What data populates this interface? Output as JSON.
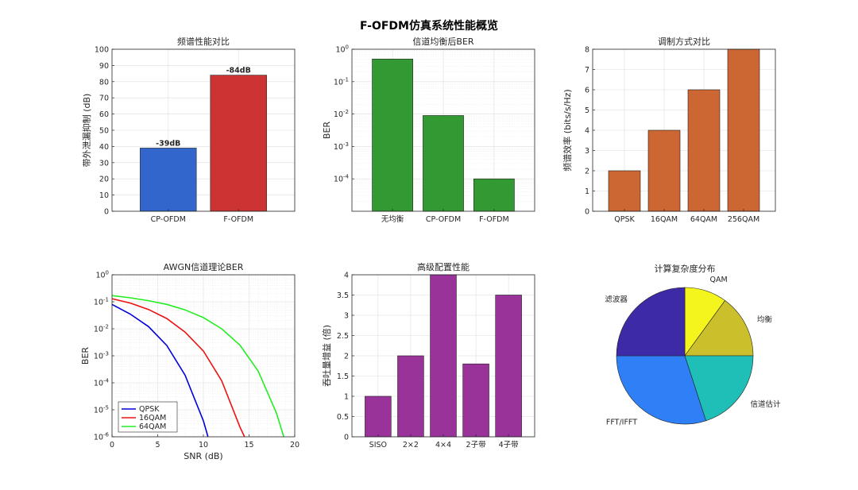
{
  "figure": {
    "suptitle": "F-OFDM仿真系统性能概览"
  },
  "chart_data": [
    {
      "id": "spectrum",
      "type": "bar",
      "title": "频谱性能对比",
      "ylabel": "带外泄漏抑制 (dB)",
      "categories": [
        "CP-OFDM",
        "F-OFDM"
      ],
      "values": [
        39,
        84
      ],
      "data_labels": [
        "-39dB",
        "-84dB"
      ],
      "colors": [
        "#3366cc",
        "#cc3333"
      ],
      "ylim": [
        0,
        100
      ],
      "yticks": [
        0,
        10,
        20,
        30,
        40,
        50,
        60,
        70,
        80,
        90,
        100
      ],
      "grid": true
    },
    {
      "id": "ber_eq",
      "type": "bar",
      "title": "信道均衡后BER",
      "ylabel": "BER",
      "yscale": "log",
      "categories": [
        "无均衡",
        "CP-OFDM",
        "F-OFDM"
      ],
      "values": [
        0.5,
        0.009,
        0.0001
      ],
      "colors": [
        "#339933",
        "#339933",
        "#339933"
      ],
      "ylim": [
        1e-05,
        1
      ],
      "yticks": [
        0.0001,
        0.001,
        0.01,
        0.1,
        1
      ],
      "yticklabels": [
        "10^-4",
        "10^-3",
        "10^-2",
        "10^-1",
        "10^0"
      ],
      "grid": true
    },
    {
      "id": "modulation",
      "type": "bar",
      "title": "调制方式对比",
      "ylabel": "频谱效率 (bits/s/Hz)",
      "categories": [
        "QPSK",
        "16QAM",
        "64QAM",
        "256QAM"
      ],
      "values": [
        2,
        4,
        6,
        8
      ],
      "colors": [
        "#cc6633",
        "#cc6633",
        "#cc6633",
        "#cc6633"
      ],
      "ylim": [
        0,
        8
      ],
      "yticks": [
        0,
        1,
        2,
        3,
        4,
        5,
        6,
        7,
        8
      ],
      "grid": true
    },
    {
      "id": "awgn",
      "type": "line",
      "title": "AWGN信道理论BER",
      "xlabel": "SNR (dB)",
      "ylabel": "BER",
      "yscale": "log",
      "xlim": [
        0,
        20
      ],
      "ylim": [
        1e-06,
        1
      ],
      "xticks": [
        0,
        5,
        10,
        15,
        20
      ],
      "yticks": [
        1e-06,
        1e-05,
        0.0001,
        0.001,
        0.01,
        0.1,
        1
      ],
      "yticklabels": [
        "10^-6",
        "10^-5",
        "10^-4",
        "10^-3",
        "10^-2",
        "10^-1",
        "10^0"
      ],
      "legend": "bottom-left",
      "grid": true,
      "series": [
        {
          "name": "QPSK",
          "color": "#0000dd",
          "x": [
            0,
            2,
            4,
            6,
            8,
            10,
            10.5
          ],
          "y": [
            0.08,
            0.035,
            0.012,
            0.0024,
            0.00019,
            3.9e-06,
            1e-06
          ]
        },
        {
          "name": "16QAM",
          "color": "#ee1111",
          "x": [
            0,
            2,
            4,
            6,
            8,
            10,
            12,
            14,
            14.5
          ],
          "y": [
            0.13,
            0.09,
            0.052,
            0.024,
            0.0075,
            0.0015,
            0.00012,
            2.3e-06,
            1e-06
          ]
        },
        {
          "name": "64QAM",
          "color": "#22ee22",
          "x": [
            0,
            2,
            4,
            6,
            8,
            10,
            12,
            14,
            16,
            18,
            18.8
          ],
          "y": [
            0.17,
            0.14,
            0.11,
            0.08,
            0.05,
            0.026,
            0.01,
            0.0025,
            0.00027,
            7.5e-06,
            1e-06
          ]
        }
      ]
    },
    {
      "id": "advanced",
      "type": "bar",
      "title": "高级配置性能",
      "ylabel": "吞吐量增益 (倍)",
      "categories": [
        "SISO",
        "2×2",
        "4×4",
        "2子带",
        "4子带"
      ],
      "values": [
        1,
        2,
        4,
        1.8,
        3.5
      ],
      "colors": [
        "#993399",
        "#993399",
        "#993399",
        "#993399",
        "#993399"
      ],
      "ylim": [
        0,
        4
      ],
      "yticks": [
        0,
        0.5,
        1,
        1.5,
        2,
        2.5,
        3,
        3.5,
        4
      ],
      "grid": true
    },
    {
      "id": "complexity",
      "type": "pie",
      "title": "计算复杂度分布",
      "slices": [
        {
          "label": "QAM",
          "value": 10,
          "color": "#f5f51e"
        },
        {
          "label": "均衡",
          "value": 15,
          "color": "#cbbf2b"
        },
        {
          "label": "信道估计",
          "value": 20,
          "color": "#1fbfb8"
        },
        {
          "label": "FFT/IFFT",
          "value": 30,
          "color": "#2f7ff7"
        },
        {
          "label": "滤波器",
          "value": 25,
          "color": "#3d2aa6"
        }
      ]
    }
  ]
}
